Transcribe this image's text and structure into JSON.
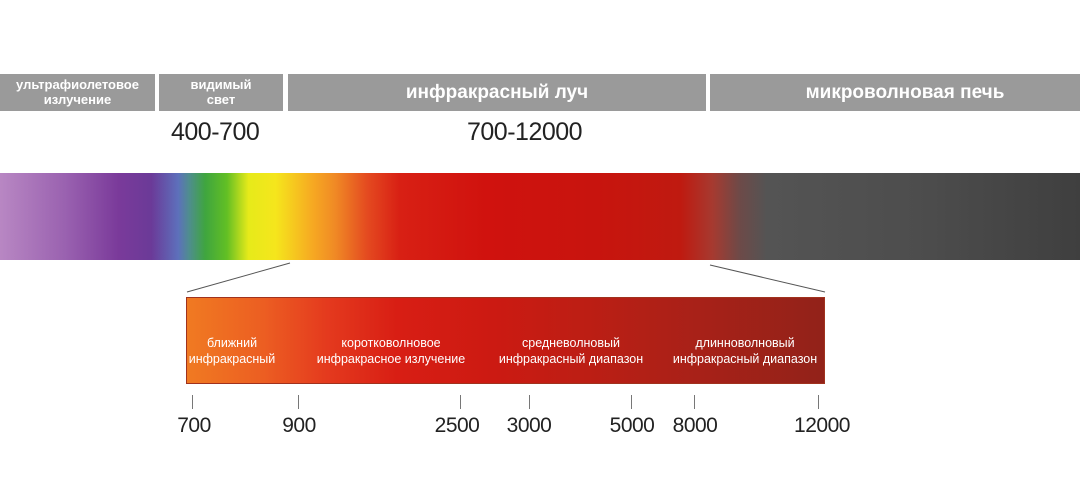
{
  "bands": {
    "uv": {
      "line1": "ультрафиолетовое",
      "line2": "излучение"
    },
    "visible": {
      "line1": "видимый",
      "line2": "свет"
    },
    "infrared": {
      "label": "инфракрасный луч"
    },
    "microwave": {
      "label": "микроволновая печь"
    }
  },
  "ranges": {
    "visible": "400-700",
    "infrared": "700-12000"
  },
  "subbands": {
    "near": {
      "line1": "ближний",
      "line2": "инфракрасный"
    },
    "short": {
      "line1": "коротковолновое",
      "line2": "инфракрасное излучение"
    },
    "mid": {
      "line1": "средневолновый",
      "line2": "инфракрасный диапазон"
    },
    "long": {
      "line1": "длинноволновый",
      "line2": "инфракрасный диапазон"
    }
  },
  "ticks": [
    "700",
    "900",
    "2500",
    "3000",
    "5000",
    "8000",
    "12000"
  ],
  "colors": {
    "band_background": "#9a9a9a",
    "band_text": "#ffffff",
    "label_text": "#222222"
  }
}
